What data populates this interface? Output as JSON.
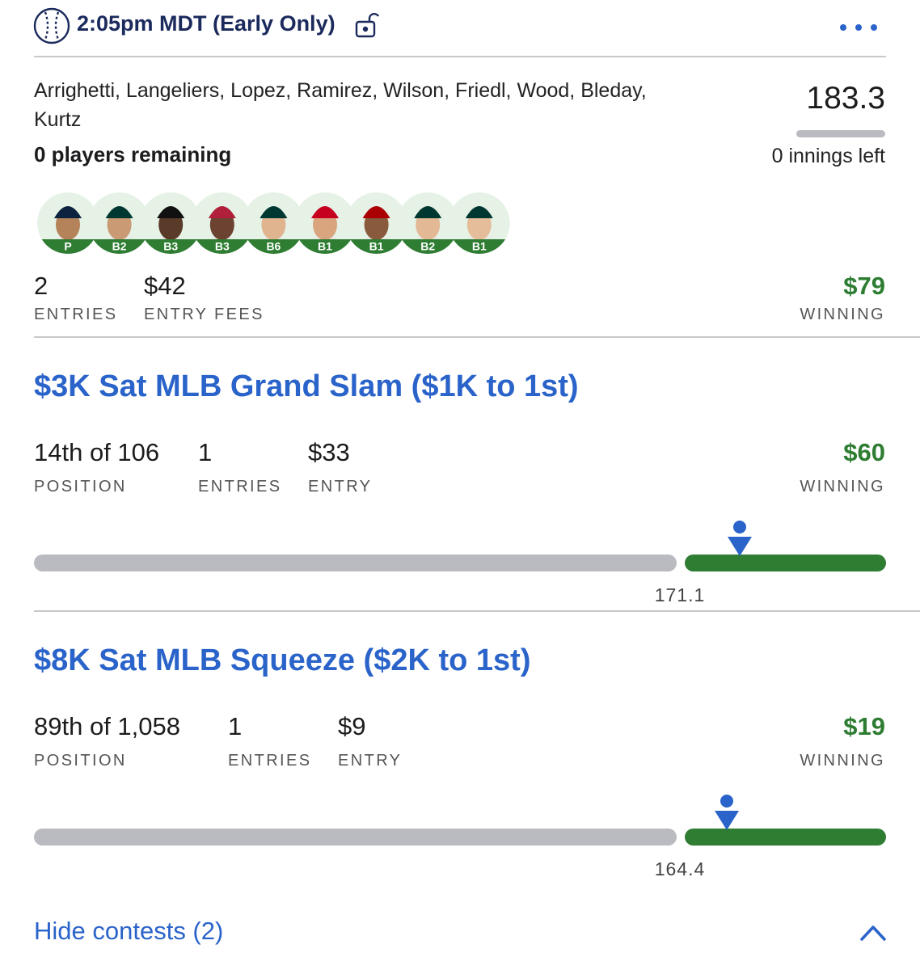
{
  "header": {
    "time": "2:05pm MDT (Early Only)"
  },
  "lineup": {
    "players": "Arrighetti, Langeliers, Lopez, Ramirez, Wilson, Friedl, Wood, Bleday, Kurtz",
    "status": "0 players remaining",
    "score": "183.3",
    "innings": "0 innings left",
    "positions": [
      "P",
      "B2",
      "B3",
      "B3",
      "B6",
      "B1",
      "B1",
      "B2",
      "B1"
    ]
  },
  "summary": {
    "entries": "2",
    "entries_label": "ENTRIES",
    "fees": "$42",
    "fees_label": "ENTRY FEES",
    "winning": "$79",
    "winning_label": "WINNING"
  },
  "contests": [
    {
      "title": "$3K Sat MLB Grand Slam ($1K to 1st)",
      "position": "14th of 106",
      "position_label": "POSITION",
      "entries": "1",
      "entries_label": "ENTRIES",
      "entry": "$33",
      "entry_label": "ENTRY",
      "winning": "$60",
      "winning_label": "WINNING",
      "cutoff": "171.1"
    },
    {
      "title": "$8K Sat MLB Squeeze ($2K to 1st)",
      "position": "89th of 1,058",
      "position_label": "POSITION",
      "entries": "1",
      "entries_label": "ENTRIES",
      "entry": "$9",
      "entry_label": "ENTRY",
      "winning": "$19",
      "winning_label": "WINNING",
      "cutoff": "164.4"
    }
  ],
  "footer": {
    "toggle": "Hide contests (2)"
  }
}
